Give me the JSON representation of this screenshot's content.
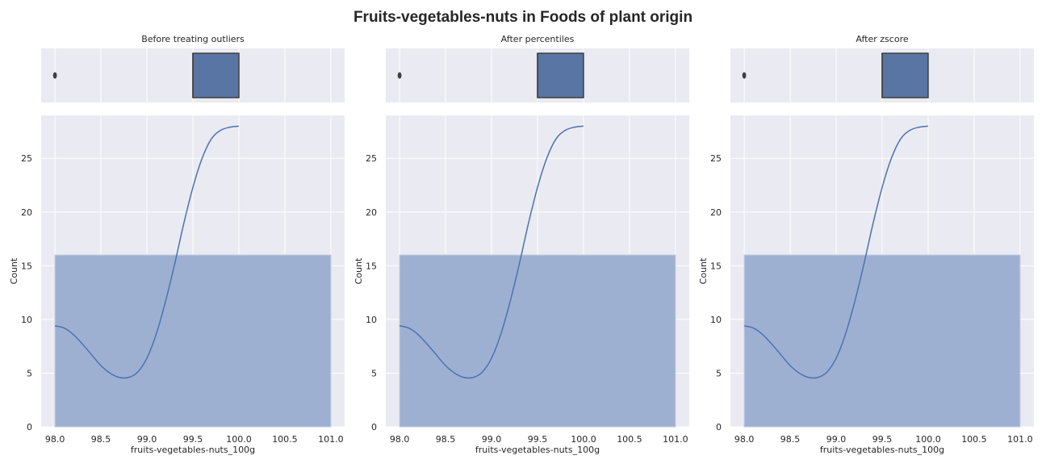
{
  "figure": {
    "title": "Fruits-vegetables-nuts in Foods of plant origin",
    "colors": {
      "axes_bg": "#eaeaf2",
      "grid": "#ffffff",
      "box_fill": "#5975a4",
      "box_edge": "#3f3f3f",
      "hist_fill": "#9aadd0",
      "hist_edge": "#c0cbe0",
      "kde_line": "#4c72b0",
      "text": "#262626"
    }
  },
  "chart_data": [
    {
      "type": "box+histogram",
      "title": "Before treating outliers",
      "xlabel": "fruits-vegetables-nuts_100g",
      "ylabel": "Count",
      "xlim": [
        97.85,
        101.15
      ],
      "ylim": [
        0,
        29
      ],
      "x_ticks": [
        98.0,
        98.5,
        99.0,
        99.5,
        100.0,
        100.5,
        101.0
      ],
      "x_tick_labels": [
        "98.0",
        "98.5",
        "99.0",
        "99.5",
        "100.0",
        "100.5",
        "101.0"
      ],
      "y_ticks": [
        0,
        5,
        10,
        15,
        20,
        25
      ],
      "y_tick_labels": [
        "0",
        "5",
        "10",
        "15",
        "20",
        "25"
      ],
      "box": {
        "q1": 99.5,
        "median": 99.5,
        "q3": 100.0,
        "whisker_low": 99.5,
        "whisker_high": 100.0,
        "outliers": [
          98.0
        ]
      },
      "histogram": {
        "bins": [
          [
            98.0,
            101.0
          ]
        ],
        "counts": [
          16
        ]
      },
      "kde": {
        "x": [
          98.0,
          98.1,
          98.2,
          98.3,
          98.4,
          98.5,
          98.6,
          98.7,
          98.8,
          98.9,
          99.0,
          99.1,
          99.2,
          99.3,
          99.4,
          99.5,
          99.6,
          99.7,
          99.8,
          99.9,
          100.0
        ],
        "y": [
          9.4,
          9.2,
          8.6,
          7.7,
          6.7,
          5.7,
          5.0,
          4.6,
          4.6,
          5.1,
          6.4,
          8.6,
          11.6,
          15.1,
          18.9,
          22.3,
          25.0,
          26.8,
          27.6,
          27.9,
          28.0
        ]
      }
    },
    {
      "type": "box+histogram",
      "title": "After percentiles",
      "xlabel": "fruits-vegetables-nuts_100g",
      "ylabel": "Count",
      "xlim": [
        97.85,
        101.15
      ],
      "ylim": [
        0,
        29
      ],
      "x_ticks": [
        98.0,
        98.5,
        99.0,
        99.5,
        100.0,
        100.5,
        101.0
      ],
      "x_tick_labels": [
        "98.0",
        "98.5",
        "99.0",
        "99.5",
        "100.0",
        "100.5",
        "101.0"
      ],
      "y_ticks": [
        0,
        5,
        10,
        15,
        20,
        25
      ],
      "y_tick_labels": [
        "0",
        "5",
        "10",
        "15",
        "20",
        "25"
      ],
      "box": {
        "q1": 99.5,
        "median": 99.5,
        "q3": 100.0,
        "whisker_low": 99.5,
        "whisker_high": 100.0,
        "outliers": [
          98.0
        ]
      },
      "histogram": {
        "bins": [
          [
            98.0,
            101.0
          ]
        ],
        "counts": [
          16
        ]
      },
      "kde": {
        "x": [
          98.0,
          98.1,
          98.2,
          98.3,
          98.4,
          98.5,
          98.6,
          98.7,
          98.8,
          98.9,
          99.0,
          99.1,
          99.2,
          99.3,
          99.4,
          99.5,
          99.6,
          99.7,
          99.8,
          99.9,
          100.0
        ],
        "y": [
          9.4,
          9.2,
          8.6,
          7.7,
          6.7,
          5.7,
          5.0,
          4.6,
          4.6,
          5.1,
          6.4,
          8.6,
          11.6,
          15.1,
          18.9,
          22.3,
          25.0,
          26.8,
          27.6,
          27.9,
          28.0
        ]
      }
    },
    {
      "type": "box+histogram",
      "title": "After zscore",
      "xlabel": "fruits-vegetables-nuts_100g",
      "ylabel": "Count",
      "xlim": [
        97.85,
        101.15
      ],
      "ylim": [
        0,
        29
      ],
      "x_ticks": [
        98.0,
        98.5,
        99.0,
        99.5,
        100.0,
        100.5,
        101.0
      ],
      "x_tick_labels": [
        "98.0",
        "98.5",
        "99.0",
        "99.5",
        "100.0",
        "100.5",
        "101.0"
      ],
      "y_ticks": [
        0,
        5,
        10,
        15,
        20,
        25
      ],
      "y_tick_labels": [
        "0",
        "5",
        "10",
        "15",
        "20",
        "25"
      ],
      "box": {
        "q1": 99.5,
        "median": 99.5,
        "q3": 100.0,
        "whisker_low": 99.5,
        "whisker_high": 100.0,
        "outliers": [
          98.0
        ]
      },
      "histogram": {
        "bins": [
          [
            98.0,
            101.0
          ]
        ],
        "counts": [
          16
        ]
      },
      "kde": {
        "x": [
          98.0,
          98.1,
          98.2,
          98.3,
          98.4,
          98.5,
          98.6,
          98.7,
          98.8,
          98.9,
          99.0,
          99.1,
          99.2,
          99.3,
          99.4,
          99.5,
          99.6,
          99.7,
          99.8,
          99.9,
          100.0
        ],
        "y": [
          9.4,
          9.2,
          8.6,
          7.7,
          6.7,
          5.7,
          5.0,
          4.6,
          4.6,
          5.1,
          6.4,
          8.6,
          11.6,
          15.1,
          18.9,
          22.3,
          25.0,
          26.8,
          27.6,
          27.9,
          28.0
        ]
      }
    }
  ]
}
